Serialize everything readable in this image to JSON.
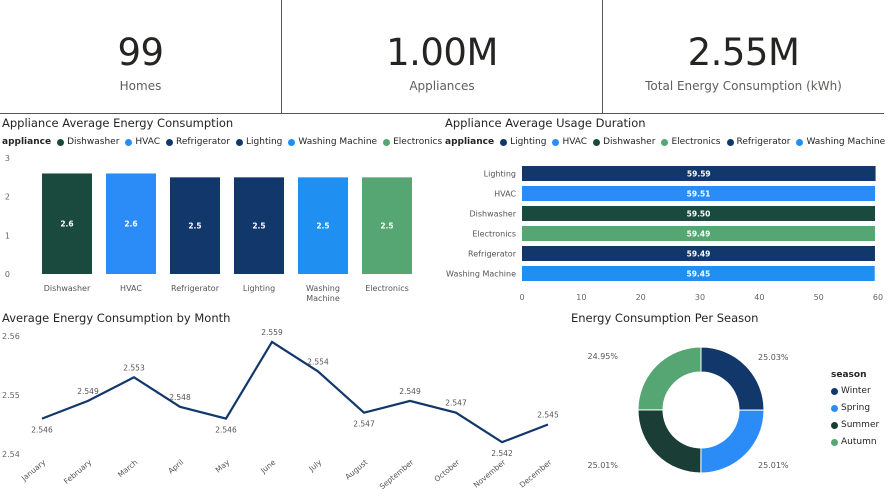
{
  "kpis": [
    {
      "value": "99",
      "label": "Homes"
    },
    {
      "value": "1.00M",
      "label": "Appliances"
    },
    {
      "value": "2.55M",
      "label": "Total Energy Consumption (kWh)"
    }
  ],
  "avg_energy": {
    "title": "Appliance Average Energy Consumption",
    "legend_title": "appliance",
    "legend": [
      "Dishwasher",
      "HVAC",
      "Refrigerator",
      "Lighting",
      "Washing Machine",
      "Electronics"
    ]
  },
  "usage_duration": {
    "title": "Appliance Average Usage Duration",
    "legend_title": "appliance",
    "legend": [
      "Lighting",
      "HVAC",
      "Dishwasher",
      "Electronics",
      "Refrigerator",
      "Washing Machine"
    ]
  },
  "monthly": {
    "title": "Average Energy Consumption by Month"
  },
  "season_chart": {
    "title": "Energy Consumption Per Season",
    "legend_title": "season"
  },
  "colors": {
    "Dishwasher": "#1a4a3e",
    "HVAC": "#2b8cf7",
    "Refrigerator": "#12386b",
    "Lighting": "#12386b",
    "Washing Machine": "#1f90f2",
    "Electronics": "#55a672",
    "Winter": "#12386b",
    "Spring": "#2b8cf7",
    "Summer": "#1a3e35",
    "Autumn": "#55a672",
    "line": "#12386b"
  },
  "chart_data": [
    {
      "type": "bar",
      "categories": [
        "Dishwasher",
        "HVAC",
        "Refrigerator",
        "Lighting",
        "Washing Machine",
        "Electronics"
      ],
      "values": [
        2.6,
        2.6,
        2.5,
        2.5,
        2.5,
        2.5
      ],
      "value_labels": [
        "2.6",
        "2.6",
        "2.5",
        "2.5",
        "2.5",
        "2.5"
      ],
      "ylim": [
        0,
        3
      ],
      "yticks": [
        "0",
        "1",
        "2",
        "3"
      ]
    },
    {
      "type": "bar",
      "orientation": "horizontal",
      "categories": [
        "Lighting",
        "HVAC",
        "Dishwasher",
        "Electronics",
        "Refrigerator",
        "Washing Machine"
      ],
      "values": [
        59.59,
        59.51,
        59.5,
        59.49,
        59.49,
        59.45
      ],
      "value_labels": [
        "59.59",
        "59.51",
        "59.50",
        "59.49",
        "59.49",
        "59.45"
      ],
      "xlim": [
        0,
        60
      ],
      "xticks": [
        "0",
        "10",
        "20",
        "30",
        "40",
        "50",
        "60"
      ]
    },
    {
      "type": "line",
      "x": [
        "January",
        "February",
        "March",
        "April",
        "May",
        "June",
        "July",
        "August",
        "September",
        "October",
        "November",
        "December"
      ],
      "values": [
        2.546,
        2.549,
        2.553,
        2.548,
        2.546,
        2.559,
        2.554,
        2.547,
        2.549,
        2.547,
        2.542,
        2.545
      ],
      "value_labels": [
        "2.546",
        "2.549",
        "2.553",
        "2.548",
        "2.546",
        "2.559",
        "2.554",
        "2.547",
        "2.549",
        "2.547",
        "2.542",
        "2.545"
      ],
      "ylim": [
        2.54,
        2.56
      ],
      "yticks": [
        "2.56",
        "2.55",
        "2.54"
      ]
    },
    {
      "type": "pie",
      "donut": true,
      "categories": [
        "Winter",
        "Spring",
        "Summer",
        "Autumn"
      ],
      "values": [
        25.03,
        25.01,
        25.01,
        24.95
      ],
      "value_labels": [
        "25.03%",
        "25.01%",
        "25.01%",
        "24.95%"
      ]
    }
  ]
}
